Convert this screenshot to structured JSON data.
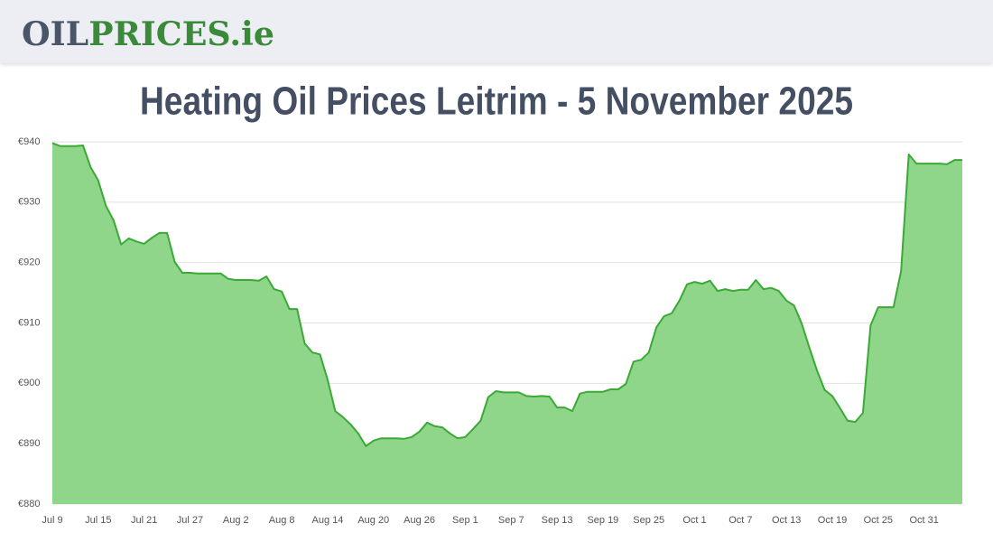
{
  "header": {
    "logo": [
      "OIL",
      "PRICES.ie"
    ]
  },
  "chart_data": {
    "type": "area",
    "title": "Heating Oil Prices Leitrim - 5 November 2025",
    "categories": [
      "Jul 9",
      null,
      null,
      null,
      null,
      null,
      "Jul 15",
      null,
      null,
      null,
      null,
      null,
      "Jul 21",
      null,
      null,
      null,
      null,
      null,
      "Jul 27",
      null,
      null,
      null,
      null,
      null,
      "Aug 2",
      null,
      null,
      null,
      null,
      null,
      "Aug 8",
      null,
      null,
      null,
      null,
      null,
      "Aug 14",
      null,
      null,
      null,
      null,
      null,
      "Aug 20",
      null,
      null,
      null,
      null,
      null,
      "Aug 26",
      null,
      null,
      null,
      null,
      null,
      "Sep 1",
      null,
      null,
      null,
      null,
      null,
      "Sep 7",
      null,
      null,
      null,
      null,
      null,
      "Sep 13",
      null,
      null,
      null,
      null,
      null,
      "Sep 19",
      null,
      null,
      null,
      null,
      null,
      "Sep 25",
      null,
      null,
      null,
      null,
      null,
      "Oct 1",
      null,
      null,
      null,
      null,
      null,
      "Oct 7",
      null,
      null,
      null,
      null,
      null,
      "Oct 13",
      null,
      null,
      null,
      null,
      null,
      "Oct 19",
      null,
      null,
      null,
      null,
      null,
      "Oct 25",
      null,
      null,
      null,
      null,
      null,
      "Oct 31",
      null,
      null,
      null,
      null,
      null
    ],
    "series": [
      {
        "color": "#3aaa35",
        "values": [
          939.8,
          939.3,
          939.3,
          939.3,
          939.4,
          935.8,
          933.6,
          929.4,
          927,
          923,
          924,
          923.5,
          923.1,
          924.1,
          924.9,
          924.9,
          920.1,
          918.3,
          918.3,
          918.2,
          918.2,
          918.2,
          918.2,
          917.3,
          917.1,
          917.1,
          917.1,
          917,
          917.7,
          915.6,
          915.2,
          912.3,
          912.3,
          906.6,
          905.1,
          904.8,
          900.6,
          895.4,
          894.4,
          893.2,
          891.7,
          889.6,
          890.5,
          890.9,
          890.9,
          890.9,
          890.8,
          891.1,
          892,
          893.5,
          892.9,
          892.7,
          891.7,
          890.9,
          891.1,
          892.4,
          893.8,
          897.7,
          898.7,
          898.5,
          898.5,
          898.5,
          897.9,
          897.8,
          897.9,
          897.8,
          896,
          896,
          895.4,
          898.3,
          898.6,
          898.6,
          898.6,
          899,
          899,
          899.9,
          903.6,
          903.9,
          905.1,
          909.3,
          911.1,
          911.6,
          913.7,
          916.4,
          916.8,
          916.5,
          917,
          915.3,
          915.6,
          915.3,
          915.5,
          915.5,
          917.1,
          915.6,
          915.8,
          915.3,
          913.7,
          912.9,
          909.9,
          905.9,
          902.1,
          898.9,
          897.9,
          895.9,
          893.8,
          893.6,
          895.1,
          909.6,
          912.6,
          912.6,
          912.6,
          918.6,
          937.9,
          936.4,
          936.4,
          936.4,
          936.4,
          936.3,
          937,
          937
        ]
      }
    ],
    "fill_color": "#8fd68b",
    "ylim": [
      880,
      940
    ],
    "yticks": [
      {
        "value": 880,
        "label": "€880"
      },
      {
        "value": 890,
        "label": "€890"
      },
      {
        "value": 900,
        "label": "€900"
      },
      {
        "value": 910,
        "label": "€910"
      },
      {
        "value": 920,
        "label": "€920"
      },
      {
        "value": 930,
        "label": "€930"
      },
      {
        "value": 940,
        "label": "€940"
      }
    ],
    "grid": true
  }
}
